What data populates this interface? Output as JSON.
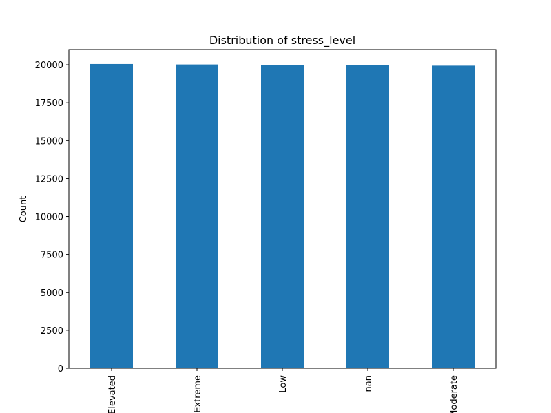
{
  "chart_data": {
    "type": "bar",
    "title": "Distribution of stress_level",
    "xlabel": "",
    "ylabel": "Count",
    "categories": [
      "Elevated",
      "Extreme",
      "Low",
      "nan",
      "Moderate"
    ],
    "values": [
      20050,
      20020,
      19990,
      19980,
      19940
    ],
    "ylim": [
      0,
      21000
    ],
    "yticks": [
      0,
      2500,
      5000,
      7500,
      10000,
      12500,
      15000,
      17500,
      20000
    ],
    "bar_color": "#1f77b4",
    "grid": false,
    "legend": false
  }
}
